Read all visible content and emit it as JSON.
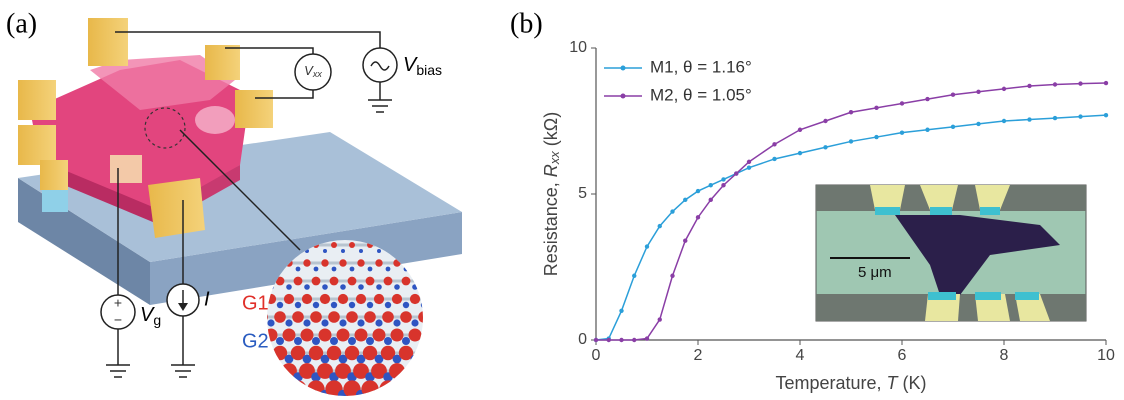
{
  "panel_a": {
    "label": "(a)",
    "vxx": {
      "symbol": "V",
      "subscript": "xx"
    },
    "vbias": {
      "symbol": "V",
      "subscript": "bias"
    },
    "vg": {
      "symbol": "V",
      "subscript": "g"
    },
    "current": "I",
    "plus": "+",
    "minus": "−",
    "g1": "G1",
    "g2": "G2"
  },
  "panel_b_label": "(b)",
  "panel_b_inset": {
    "scale_label": "5 μm"
  },
  "chart_data": {
    "type": "line",
    "xlabel": {
      "text": "Temperature,",
      "symbol": "T",
      "unit": "(K)"
    },
    "ylabel": {
      "text": "Resistance,",
      "symbol": "R",
      "subscript": "xx",
      "unit": "(kΩ)"
    },
    "x": [
      0,
      0.25,
      0.5,
      0.75,
      1,
      1.25,
      1.5,
      1.75,
      2,
      2.25,
      2.5,
      2.75,
      3,
      3.5,
      4,
      4.5,
      5,
      5.5,
      6,
      6.5,
      7,
      7.5,
      8,
      8.5,
      9,
      9.5,
      10
    ],
    "series": [
      {
        "name": "M1, θ = 1.16°",
        "color": "#2b9fd9",
        "values": [
          0,
          0.05,
          1.0,
          2.2,
          3.2,
          3.9,
          4.4,
          4.8,
          5.1,
          5.3,
          5.5,
          5.7,
          5.9,
          6.2,
          6.4,
          6.6,
          6.8,
          6.95,
          7.1,
          7.2,
          7.3,
          7.4,
          7.5,
          7.55,
          7.6,
          7.65,
          7.7
        ]
      },
      {
        "name": "M2, θ = 1.05°",
        "color": "#8a3ea6",
        "values": [
          0,
          0,
          0,
          0,
          0.05,
          0.7,
          2.2,
          3.4,
          4.2,
          4.8,
          5.3,
          5.7,
          6.1,
          6.7,
          7.2,
          7.5,
          7.8,
          7.95,
          8.1,
          8.25,
          8.4,
          8.5,
          8.6,
          8.7,
          8.75,
          8.78,
          8.8
        ]
      }
    ],
    "xlim": [
      0,
      10
    ],
    "ylim": [
      0,
      10
    ],
    "xticks": [
      0,
      2,
      4,
      6,
      8,
      10
    ],
    "yticks": [
      0,
      5,
      10
    ],
    "legend": "upper left",
    "markers": true
  }
}
